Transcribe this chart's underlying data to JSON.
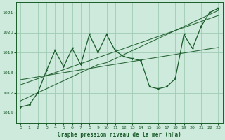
{
  "title": "Graphe pression niveau de la mer (hPa)",
  "bg_color": "#ceeadc",
  "grid_color": "#a0ccb4",
  "line_color": "#1a5c2a",
  "xlim": [
    -0.5,
    23.5
  ],
  "ylim": [
    1015.5,
    1021.5
  ],
  "yticks": [
    1016,
    1017,
    1018,
    1019,
    1020,
    1021
  ],
  "xticks": [
    0,
    1,
    2,
    3,
    4,
    5,
    6,
    7,
    8,
    9,
    10,
    11,
    12,
    13,
    14,
    15,
    16,
    17,
    18,
    19,
    20,
    21,
    22,
    23
  ],
  "pressure": [
    1016.3,
    1016.4,
    1017.0,
    1018.1,
    1019.1,
    1018.3,
    1019.2,
    1018.4,
    1019.9,
    1019.0,
    1019.9,
    1019.1,
    1018.8,
    1018.7,
    1018.6,
    1017.3,
    1017.2,
    1017.3,
    1017.7,
    1019.9,
    1019.2,
    1020.3,
    1021.0,
    1021.2
  ],
  "trend1": [
    1016.6,
    1016.8,
    1017.0,
    1017.2,
    1017.4,
    1017.6,
    1017.8,
    1018.0,
    1018.2,
    1018.4,
    1018.5,
    1018.7,
    1018.9,
    1019.1,
    1019.3,
    1019.5,
    1019.7,
    1019.9,
    1020.1,
    1020.3,
    1020.5,
    1020.7,
    1020.9,
    1021.1
  ],
  "trend2": [
    1017.4,
    1017.55,
    1017.7,
    1017.85,
    1018.0,
    1018.15,
    1018.3,
    1018.45,
    1018.6,
    1018.75,
    1018.9,
    1019.05,
    1019.2,
    1019.35,
    1019.5,
    1019.65,
    1019.8,
    1019.95,
    1020.1,
    1020.25,
    1020.4,
    1020.55,
    1020.7,
    1020.85
  ],
  "trend3": [
    1017.65,
    1017.72,
    1017.79,
    1017.86,
    1017.93,
    1018.0,
    1018.07,
    1018.14,
    1018.21,
    1018.28,
    1018.35,
    1018.42,
    1018.49,
    1018.56,
    1018.63,
    1018.7,
    1018.77,
    1018.84,
    1018.91,
    1018.98,
    1019.05,
    1019.12,
    1019.19,
    1019.25
  ]
}
